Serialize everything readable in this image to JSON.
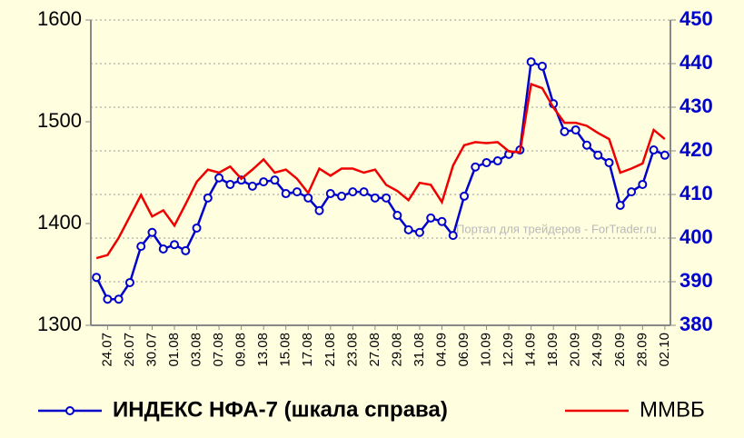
{
  "chart_data": {
    "type": "line",
    "annotation": "Портал для трейдеров - ForTrader.ru",
    "categories": [
      null,
      "24.07",
      null,
      "26.07",
      null,
      "30.07",
      null,
      "01.08",
      null,
      "03.08",
      null,
      "07.08",
      null,
      "09.08",
      null,
      "13.08",
      null,
      "15.08",
      null,
      "17.08",
      null,
      "21.08",
      null,
      "23.08",
      null,
      "27.08",
      null,
      "29.08",
      null,
      "31.08",
      null,
      "04.09",
      null,
      "06.09",
      null,
      "10.09",
      null,
      "12.09",
      null,
      "14.09",
      null,
      "18.09",
      null,
      "20.09",
      null,
      "24.09",
      null,
      "26.09",
      null,
      "28.09",
      null,
      "02.10"
    ],
    "series": [
      {
        "name": "ИНДЕКС НФА-7 (шкала справа)",
        "color": "#0000cc",
        "axis": "y2",
        "marker": true,
        "values": [
          391.0,
          386.0,
          386.0,
          389.8,
          398.1,
          401.3,
          397.5,
          398.5,
          397.1,
          402.3,
          409.2,
          413.8,
          412.3,
          413.3,
          411.9,
          412.9,
          413.3,
          410.2,
          410.6,
          409.2,
          406.3,
          410.2,
          409.6,
          410.6,
          410.6,
          409.2,
          409.2,
          405.2,
          401.9,
          401.3,
          404.6,
          403.8,
          400.6,
          409.6,
          416.3,
          417.3,
          417.7,
          419.2,
          420.2,
          440.4,
          439.4,
          430.8,
          424.4,
          424.8,
          421.3,
          419.0,
          417.3,
          407.5,
          410.6,
          412.3,
          420.2,
          419.0
        ]
      },
      {
        "name": "ММВБ",
        "color": "#ee0000",
        "marker": false,
        "values": [
          1366,
          1369,
          1386,
          1407,
          1428,
          1407,
          1413,
          1398,
          1419,
          1441,
          1453,
          1450,
          1456,
          1444,
          1453,
          1463,
          1450,
          1453,
          1444,
          1430,
          1454,
          1447,
          1454,
          1454,
          1450,
          1453,
          1438,
          1432,
          1423,
          1440,
          1438,
          1421,
          1457,
          1477,
          1480,
          1479,
          1480,
          1471,
          1470,
          1537,
          1533,
          1514,
          1499,
          1499,
          1496,
          1489,
          1483,
          1450,
          1454,
          1459,
          1492,
          1483
        ]
      }
    ],
    "ylim": [
      1300,
      1600
    ],
    "yticks": [
      1300,
      1400,
      1500,
      1600
    ],
    "y2lim": [
      380,
      450
    ],
    "y2ticks": [
      380,
      390,
      400,
      410,
      420,
      430,
      440,
      450
    ],
    "y2color": "#0000cc",
    "grid": true
  }
}
